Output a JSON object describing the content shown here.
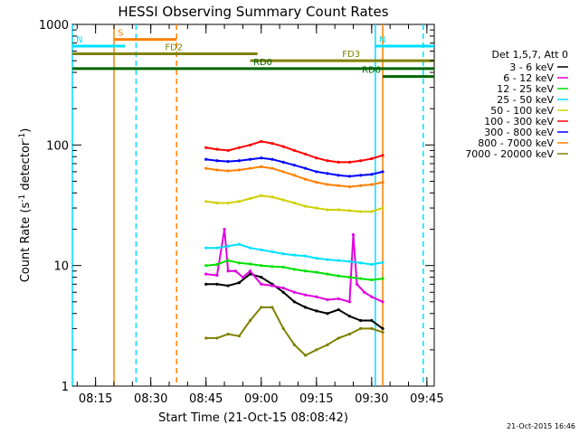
{
  "chart_data": {
    "type": "line",
    "title": "HESSI Observing Summary Count Rates",
    "xlabel": "Start Time (21-Oct-15 08:08:42)",
    "ylabel_main": "Count Rate (s",
    "ylabel_sup1": "-1",
    "ylabel_mid": " detector",
    "ylabel_sup2": "-1",
    "ylabel_end": ")",
    "yscale": "log",
    "xlim": [
      "08:08:42",
      "09:47:00"
    ],
    "ylim": [
      1,
      1000
    ],
    "x_ticks": [
      "08:15",
      "08:30",
      "08:45",
      "09:00",
      "09:15",
      "09:30",
      "09:45"
    ],
    "y_tick_labels": [
      {
        "value": 1,
        "label": "1"
      },
      {
        "value": 10,
        "label": "10"
      },
      {
        "value": 100,
        "label": "100"
      },
      {
        "value": 1000,
        "label": "1000"
      }
    ],
    "legend_title": "Det 1,5,7, Att 0",
    "legend_position": "right",
    "series": [
      {
        "name": "3 - 6 keV",
        "color": "#000000",
        "x": [
          "08:45",
          "08:48",
          "08:51",
          "08:54",
          "08:57",
          "09:00",
          "09:03",
          "09:06",
          "09:09",
          "09:12",
          "09:15",
          "09:18",
          "09:21",
          "09:24",
          "09:27",
          "09:30",
          "09:33"
        ],
        "values": [
          7,
          7,
          6.8,
          7.2,
          8.5,
          8,
          7,
          6,
          5,
          4.5,
          4.2,
          4,
          4.3,
          3.8,
          3.5,
          3.5,
          3
        ]
      },
      {
        "name": "6 - 12 keV",
        "color": "#e000e0",
        "x": [
          "08:45",
          "08:48",
          "08:50",
          "08:51",
          "08:53",
          "08:55",
          "08:57",
          "09:00",
          "09:03",
          "09:06",
          "09:09",
          "09:12",
          "09:15",
          "09:18",
          "09:21",
          "09:24",
          "09:25",
          "09:26",
          "09:28",
          "09:30",
          "09:33"
        ],
        "values": [
          8.5,
          8.3,
          20,
          9,
          9,
          8,
          9,
          7,
          6.8,
          6.5,
          6,
          5.7,
          5.5,
          5.2,
          5.3,
          5,
          18,
          7,
          6,
          5.5,
          5
        ]
      },
      {
        "name": "12 - 25 keV",
        "color": "#00e000",
        "x": [
          "08:45",
          "08:48",
          "08:51",
          "08:54",
          "08:57",
          "09:00",
          "09:03",
          "09:06",
          "09:09",
          "09:12",
          "09:15",
          "09:18",
          "09:21",
          "09:24",
          "09:27",
          "09:30",
          "09:33"
        ],
        "values": [
          10,
          10.2,
          11,
          10.5,
          10.3,
          10,
          9.8,
          9.7,
          9.3,
          9,
          8.8,
          8.5,
          8.2,
          8,
          7.8,
          7.6,
          7.8
        ]
      },
      {
        "name": "25 - 50 keV",
        "color": "#00e0ff",
        "x": [
          "08:45",
          "08:48",
          "08:51",
          "08:54",
          "08:57",
          "09:00",
          "09:03",
          "09:06",
          "09:09",
          "09:12",
          "09:15",
          "09:18",
          "09:21",
          "09:24",
          "09:27",
          "09:30",
          "09:33"
        ],
        "values": [
          14,
          14,
          14.5,
          15,
          14,
          13.5,
          13,
          12.5,
          12.2,
          12,
          11.5,
          11.2,
          11,
          10.8,
          10.5,
          10.2,
          10.6
        ]
      },
      {
        "name": "50 - 100 keV",
        "color": "#d0d000",
        "x": [
          "08:45",
          "08:48",
          "08:51",
          "08:54",
          "08:57",
          "09:00",
          "09:03",
          "09:06",
          "09:09",
          "09:12",
          "09:15",
          "09:18",
          "09:21",
          "09:24",
          "09:27",
          "09:30",
          "09:33"
        ],
        "values": [
          34,
          33,
          33,
          34,
          36,
          38,
          37,
          35,
          33,
          31,
          30,
          29,
          29,
          28.5,
          28,
          28,
          30
        ]
      },
      {
        "name": "100 - 300 keV",
        "color": "#ff0000",
        "x": [
          "08:45",
          "08:48",
          "08:51",
          "08:54",
          "08:57",
          "09:00",
          "09:03",
          "09:06",
          "09:09",
          "09:12",
          "09:15",
          "09:18",
          "09:21",
          "09:24",
          "09:27",
          "09:30",
          "09:33"
        ],
        "values": [
          95,
          92,
          90,
          95,
          100,
          107,
          103,
          97,
          90,
          84,
          78,
          74,
          72,
          72,
          74,
          77,
          82
        ]
      },
      {
        "name": "300 - 800 keV",
        "color": "#0000ff",
        "x": [
          "08:45",
          "08:48",
          "08:51",
          "08:54",
          "08:57",
          "09:00",
          "09:03",
          "09:06",
          "09:09",
          "09:12",
          "09:15",
          "09:18",
          "09:21",
          "09:24",
          "09:27",
          "09:30",
          "09:33"
        ],
        "values": [
          76,
          74,
          73,
          74,
          76,
          78,
          76,
          72,
          68,
          64,
          60,
          58,
          56,
          55,
          56,
          57,
          60
        ]
      },
      {
        "name": "800 - 7000 keV",
        "color": "#ff8000",
        "x": [
          "08:45",
          "08:48",
          "08:51",
          "08:54",
          "08:57",
          "09:00",
          "09:03",
          "09:06",
          "09:09",
          "09:12",
          "09:15",
          "09:18",
          "09:21",
          "09:24",
          "09:27",
          "09:30",
          "09:33"
        ],
        "values": [
          64,
          62,
          61,
          62,
          64,
          66,
          64,
          60,
          56,
          52,
          49,
          47,
          46,
          45,
          46,
          47,
          49
        ]
      },
      {
        "name": "7000 - 20000 keV",
        "color": "#808000",
        "x": [
          "08:45",
          "08:48",
          "08:51",
          "08:54",
          "08:57",
          "09:00",
          "09:03",
          "09:06",
          "09:09",
          "09:12",
          "09:15",
          "09:18",
          "09:21",
          "09:24",
          "09:27",
          "09:30",
          "09:33"
        ],
        "values": [
          2.5,
          2.5,
          2.7,
          2.6,
          3.5,
          4.5,
          4.5,
          3,
          2.2,
          1.8,
          2,
          2.2,
          2.5,
          2.7,
          3,
          3,
          2.8
        ]
      }
    ],
    "annotations": {
      "bars": [
        {
          "label": "S",
          "color": "#ff8000",
          "start": "08:20",
          "end": "08:37",
          "level": 750
        },
        {
          "label": "N",
          "color": "#00e0ff",
          "start": "08:08:42",
          "end": "08:23",
          "level": 660
        },
        {
          "label": "FD2",
          "color": "#808000",
          "start": "08:08:42",
          "end": "08:59",
          "level": 570
        },
        {
          "label": "FD3",
          "color": "#808000",
          "start": "08:57",
          "end": "09:47",
          "level": 500
        },
        {
          "label": "N",
          "color": "#00e0ff",
          "start": "09:31",
          "end": "09:47",
          "level": 660
        },
        {
          "label": "RD0",
          "color": "#006400",
          "start": "08:08:42",
          "end": "09:47",
          "level": 430
        },
        {
          "label": "RD6",
          "color": "#006400",
          "start": "09:33",
          "end": "09:47",
          "level": 370
        }
      ],
      "vlines": [
        {
          "x": "08:08:42",
          "color": "#00e0ff",
          "style": "solid"
        },
        {
          "x": "08:20",
          "color": "#ff8000",
          "style": "solid"
        },
        {
          "x": "08:26",
          "color": "#00e0ff",
          "style": "dashed"
        },
        {
          "x": "08:37",
          "color": "#ff8000",
          "style": "dashed"
        },
        {
          "x": "09:31",
          "color": "#00e0ff",
          "style": "solid"
        },
        {
          "x": "09:33",
          "color": "#ff8000",
          "style": "solid"
        },
        {
          "x": "09:44",
          "color": "#00e0ff",
          "style": "dashed"
        }
      ]
    }
  },
  "footer_timestamp": "21-Oct-2015 16:46"
}
